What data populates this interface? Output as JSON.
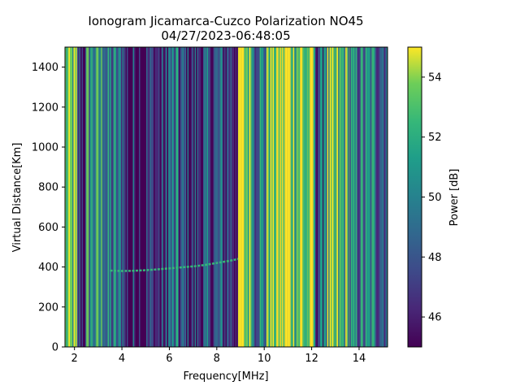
{
  "chart_data": {
    "type": "heatmap",
    "title": "Ionogram Jicamarca-Cuzco Polarization NO45",
    "subtitle": "04/27/2023-06:48:05",
    "xlabel": "Frequency[MHz]",
    "ylabel": "Virtual Distance[Km]",
    "xlim": [
      1.6,
      15.2
    ],
    "ylim": [
      0,
      1500
    ],
    "x_ticks": [
      2,
      4,
      6,
      8,
      10,
      12,
      14
    ],
    "y_ticks": [
      0,
      200,
      400,
      600,
      800,
      1000,
      1200,
      1400
    ],
    "colorbar": {
      "label": "Power [dB]",
      "range": [
        45,
        55
      ],
      "ticks": [
        46,
        48,
        50,
        52,
        54
      ],
      "colormap": "viridis"
    },
    "frequency_bands": [
      {
        "range": [
          1.6,
          2.1
        ],
        "level_db": 52.5
      },
      {
        "range": [
          2.1,
          2.5
        ],
        "level_db": 47.0
      },
      {
        "range": [
          2.5,
          3.3
        ],
        "level_db": 51.0
      },
      {
        "range": [
          3.3,
          4.1
        ],
        "level_db": 49.0
      },
      {
        "range": [
          4.1,
          5.9
        ],
        "level_db": 46.2
      },
      {
        "range": [
          5.9,
          6.4
        ],
        "level_db": 48.5
      },
      {
        "range": [
          6.4,
          7.7
        ],
        "level_db": 46.8
      },
      {
        "range": [
          7.7,
          8.9
        ],
        "level_db": 47.5
      },
      {
        "range": [
          8.9,
          9.5
        ],
        "level_db": 54.5
      },
      {
        "range": [
          9.5,
          10.1
        ],
        "level_db": 50.0
      },
      {
        "range": [
          10.1,
          10.6
        ],
        "level_db": 55.0
      },
      {
        "range": [
          10.6,
          11.3
        ],
        "level_db": 54.8
      },
      {
        "range": [
          11.3,
          12.1
        ],
        "level_db": 53.5
      },
      {
        "range": [
          12.1,
          12.5
        ],
        "level_db": 48.0
      },
      {
        "range": [
          12.5,
          13.6
        ],
        "level_db": 52.0
      },
      {
        "range": [
          13.6,
          15.2
        ],
        "level_db": 49.5
      }
    ],
    "echo_trace": {
      "x": [
        3.5,
        4.0,
        4.5,
        5.0,
        5.5,
        6.0,
        6.5,
        7.0,
        7.5,
        8.0,
        8.5,
        8.9
      ],
      "y": [
        382,
        380,
        381,
        384,
        388,
        393,
        398,
        403,
        410,
        420,
        430,
        440
      ],
      "level_db": 53
    }
  }
}
